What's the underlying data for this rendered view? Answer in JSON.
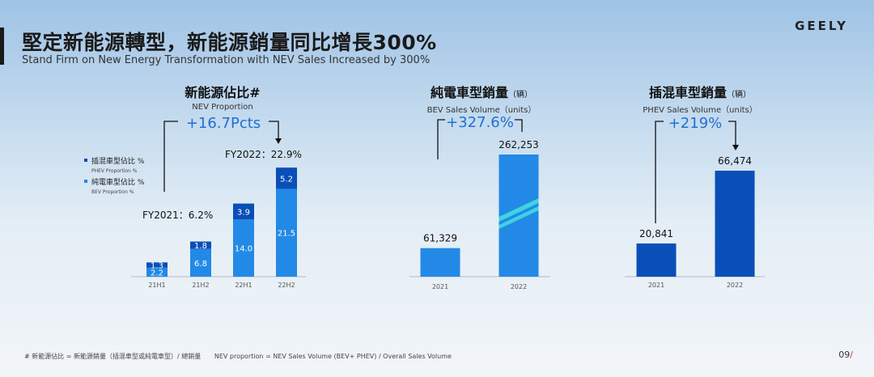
{
  "header": {
    "title": "堅定新能源轉型，新能源銷量同比增長300%",
    "subtitle": "Stand Firm on New Energy Transformation with NEV Sales Increased by 300%",
    "logo": "GEELY"
  },
  "footer": {
    "note_zh": "# 新能源佔比 = 新能源銷量（插混車型或純電車型）/ 總銷量",
    "note_en": "NEV proportion = NEV Sales Volume (BEV+ PHEV) / Overall Sales Volume",
    "page": "09",
    "page_slash": "/"
  },
  "colors": {
    "phev": "#0a4fb8",
    "bev": "#2389e6",
    "growth_text": "#1f6fd1",
    "stripe": "#3fd3e0"
  },
  "chart_data": [
    {
      "type": "bar",
      "stacked": true,
      "title": "新能源佔比#",
      "subtitle": "NEV Proportion",
      "categories": [
        "21H1",
        "21H2",
        "22H1",
        "22H2"
      ],
      "series": [
        {
          "name": "純電車型佔比 %",
          "sub": "BEV Proportion %",
          "values": [
            2.2,
            6.8,
            14.0,
            21.5
          ],
          "labels": [
            "2.2",
            "6.8",
            "14.0",
            "21.5"
          ]
        },
        {
          "name": "插混車型佔比 %",
          "sub": "PHEV Proportion %",
          "values": [
            1.3,
            1.8,
            3.9,
            5.2
          ],
          "labels": [
            "1.3",
            "1.8",
            "3.9",
            "5.2"
          ]
        }
      ],
      "legend_position": "left",
      "annotations": {
        "growth": "+16.7Pcts",
        "fy2021": "FY2021：6.2%",
        "fy2022": "FY2022：22.9%"
      },
      "ylim": [
        0,
        30
      ]
    },
    {
      "type": "bar",
      "title": "純電車型銷量",
      "title_unit": "（辆）",
      "subtitle": "BEV Sales Volume（units）",
      "categories": [
        "2021",
        "2022"
      ],
      "values": [
        61329,
        262253
      ],
      "value_labels": [
        "61,329",
        "262,253"
      ],
      "growth": "+327.6%",
      "ylim": [
        0,
        300000
      ]
    },
    {
      "type": "bar",
      "title": "插混車型銷量",
      "title_unit": "（辆）",
      "subtitle": "PHEV Sales Volume（units）",
      "categories": [
        "2021",
        "2022"
      ],
      "values": [
        20841,
        66474
      ],
      "value_labels": [
        "20,841",
        "66,474"
      ],
      "growth": "+219%",
      "ylim": [
        0,
        76000
      ]
    }
  ]
}
